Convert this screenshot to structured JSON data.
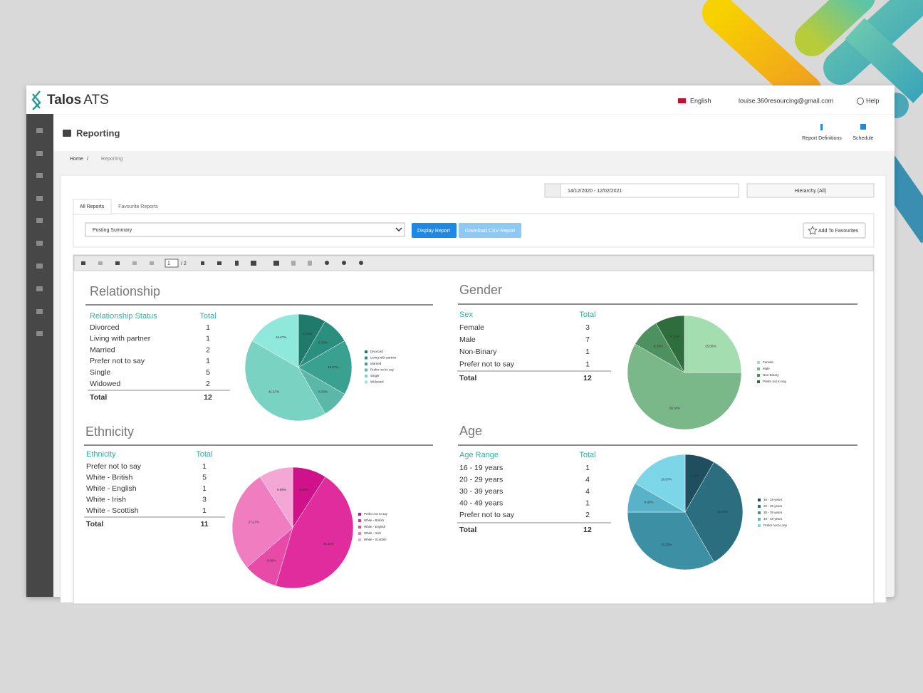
{
  "header": {
    "brand": "Talos",
    "brand_suffix": "ATS",
    "language": "English",
    "user": "louise.360resourcing@gmail.com",
    "help": "Help"
  },
  "page": {
    "title": "Reporting",
    "actions": [
      "Report Definitions",
      "Schedule"
    ]
  },
  "breadcrumb": [
    "Home",
    "/",
    "Reporting"
  ],
  "filters": {
    "date_range": "14/12/2020 - 12/02/2021",
    "hierarchy": "Hierarchy (All)"
  },
  "tabs": [
    "All Reports",
    "Favourite Reports"
  ],
  "report_select": "Posting Summary",
  "buttons": [
    "Display Report",
    "Download CSV Report",
    "Add To Favourites"
  ],
  "viewer": {
    "page": "1",
    "page_count": "/ 2"
  },
  "chart_data": [
    {
      "type": "pie",
      "title": "Relationship",
      "table_headers": [
        "Relationship Status",
        "Total"
      ],
      "categories": [
        "Divorced",
        "Living with partner",
        "Married",
        "Prefer not to say",
        "Single",
        "Widowed"
      ],
      "counts": [
        1,
        1,
        2,
        1,
        5,
        2
      ],
      "total_label": "Total",
      "total": 12,
      "values": [
        8.33,
        8.33,
        16.67,
        8.33,
        41.67,
        16.67
      ],
      "value_labels": [
        "8.33%",
        "8.33%",
        "16.67%",
        "8.33%",
        "41.67%",
        "16.67%"
      ],
      "colors": [
        "#1f7a6b",
        "#2a8f7e",
        "#3aa08f",
        "#5bb8a8",
        "#79d2c2",
        "#8ee8dc"
      ]
    },
    {
      "type": "pie",
      "title": "Gender",
      "table_headers": [
        "Sex",
        "Total"
      ],
      "categories": [
        "Female",
        "Male",
        "Non-Binary",
        "Prefer not to say"
      ],
      "counts": [
        3,
        7,
        1,
        1
      ],
      "total_label": "Total",
      "total": 12,
      "values": [
        25.0,
        58.33,
        8.33,
        8.33
      ],
      "value_labels": [
        "25.00%",
        "58.33%",
        "8.33%",
        "8.33%"
      ],
      "colors": [
        "#a3ddb0",
        "#7ab88a",
        "#4e9160",
        "#2e6e3e"
      ]
    },
    {
      "type": "pie",
      "title": "Ethnicity",
      "table_headers": [
        "Ethnicity",
        "Total"
      ],
      "categories": [
        "Prefer not to say",
        "White - British",
        "White - English",
        "White - Irish",
        "White - Scottish"
      ],
      "counts": [
        1,
        5,
        1,
        3,
        1
      ],
      "total_label": "Total",
      "total": 11,
      "values": [
        9.09,
        45.45,
        9.09,
        27.27,
        9.09
      ],
      "value_labels": [
        "9.09%",
        "45.45%",
        "9.09%",
        "27.27%",
        "9.09%"
      ],
      "colors": [
        "#d0128a",
        "#e12c9e",
        "#e84aa8",
        "#f07dc0",
        "#f4a6d5"
      ]
    },
    {
      "type": "pie",
      "title": "Age",
      "table_headers": [
        "Age Range",
        "Total"
      ],
      "categories": [
        "16 - 19 years",
        "20 - 29 years",
        "30 - 39 years",
        "40 - 49 years",
        "Prefer not to say"
      ],
      "counts": [
        1,
        4,
        4,
        1,
        2
      ],
      "total_label": "Total",
      "total": 12,
      "values": [
        8.33,
        33.33,
        33.33,
        8.33,
        16.67
      ],
      "value_labels": [
        "8.33%",
        "33.33%",
        "33.33%",
        "8.33%",
        "16.67%"
      ],
      "colors": [
        "#1f4e5f",
        "#2a6e80",
        "#3d90a3",
        "#58b3c8",
        "#7dd6e8"
      ]
    }
  ]
}
